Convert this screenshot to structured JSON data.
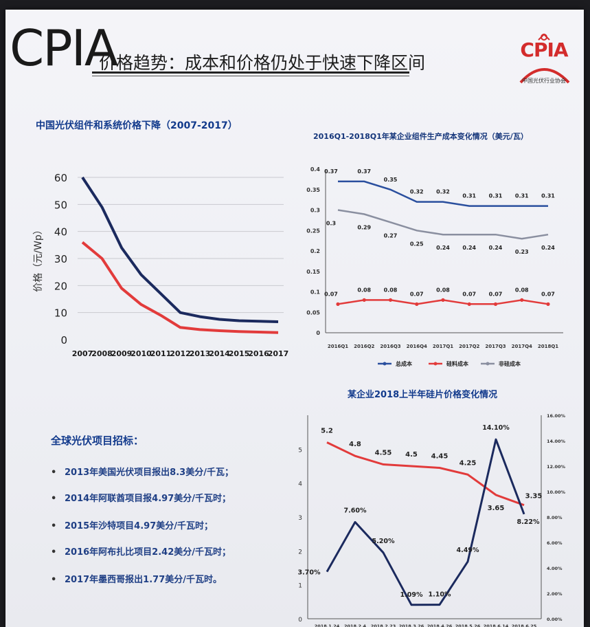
{
  "header": {
    "cpia_text": "CPIA",
    "title": "价格趋势：成本和价格仍处于快速下降区间",
    "logo_text": "CPIA",
    "logo_subtitle": "中国光伏行业协会"
  },
  "colors": {
    "navy": "#1b2a5e",
    "red": "#e23b3b",
    "blue": "#2a4f9e",
    "gray": "#8a8fa0",
    "title_blue": "#123a8c"
  },
  "chart_data": [
    {
      "id": "module-system-price",
      "type": "line",
      "title": "中国光伏组件和系统价格下降（2007-2017）",
      "ylabel": "价格（元/Wp）",
      "x": [
        "2007",
        "2008",
        "2009",
        "2010",
        "2011",
        "2012",
        "2013",
        "2014",
        "2015",
        "2016",
        "2017"
      ],
      "yticks": [
        0,
        10,
        20,
        30,
        40,
        50,
        60
      ],
      "ylim": [
        0,
        60
      ],
      "grid": true,
      "series": [
        {
          "color": "#1b2a5e",
          "values": [
            60,
            49,
            34,
            24,
            17,
            10,
            8.5,
            7.5,
            7,
            6.8,
            6.6
          ]
        },
        {
          "color": "#e23b3b",
          "values": [
            36,
            30,
            19,
            13,
            9,
            4.5,
            3.7,
            3.3,
            3.0,
            2.8,
            2.6
          ]
        }
      ]
    },
    {
      "id": "module-cost",
      "type": "line",
      "title": "2016Q1-2018Q1年某企业组件生产成本变化情况（美元/瓦）",
      "x": [
        "2016Q1",
        "2016Q2",
        "2016Q3",
        "2016Q4",
        "2017Q1",
        "2017Q2",
        "2017Q3",
        "2017Q4",
        "2018Q1"
      ],
      "yticks": [
        "0",
        "0.05",
        "0.1",
        "0.15",
        "0.2",
        "0.25",
        "0.3",
        "0.35",
        "0.4"
      ],
      "ylim": [
        0,
        0.4
      ],
      "legend_position": "bottom",
      "series": [
        {
          "name": "总成本",
          "color": "#2a4f9e",
          "values": [
            0.37,
            0.37,
            0.35,
            0.32,
            0.32,
            0.31,
            0.31,
            0.31,
            0.31
          ],
          "labels": [
            "0.37",
            "0.37",
            "0.35",
            "0.32",
            "0.32",
            "0.31",
            "0.31",
            "0.31",
            "0.31"
          ]
        },
        {
          "name": "非硅成本",
          "color": "#8a8fa0",
          "values": [
            0.3,
            0.29,
            0.27,
            0.25,
            0.24,
            0.24,
            0.24,
            0.23,
            0.24
          ],
          "labels": [
            "0.3",
            "0.29",
            "0.27",
            "0.25",
            "0.24",
            "0.24",
            "0.24",
            "0.23",
            "0.24"
          ]
        },
        {
          "name": "硅料成本",
          "color": "#e23b3b",
          "values": [
            0.07,
            0.08,
            0.08,
            0.07,
            0.08,
            0.07,
            0.07,
            0.08,
            0.07
          ],
          "labels": [
            "0.07",
            "0.08",
            "0.08",
            "0.07",
            "0.08",
            "0.07",
            "0.07",
            "0.08",
            "0.07"
          ]
        }
      ],
      "legend": [
        "总成本",
        "硅料成本",
        "非硅成本"
      ]
    },
    {
      "id": "wafer-price",
      "type": "line",
      "title": "某企业2018上半年硅片价格变化情况",
      "x": [
        "2018.1.24",
        "2018.2.4",
        "2018.2.23",
        "2018.3.26",
        "2018.4.26",
        "2018.5.26",
        "2018.6.14",
        "2018.6.25"
      ],
      "yticks_left": [
        "0",
        "1",
        "2",
        "3",
        "4",
        "5"
      ],
      "ylim_left": [
        0,
        6
      ],
      "yticks_right": [
        "0.00%",
        "2.00%",
        "4.00%",
        "6.00%",
        "8.00%",
        "10.00%",
        "12.00%",
        "14.00%",
        "16.00%"
      ],
      "ylim_right": [
        0,
        16
      ],
      "series": [
        {
          "color": "#e23b3b",
          "axis": "left",
          "values": [
            5.2,
            4.8,
            4.55,
            4.5,
            4.45,
            4.25,
            3.65,
            3.35
          ],
          "labels": [
            "5.2",
            "4.8",
            "4.55",
            "4.5",
            "4.45",
            "4.25",
            "3.65",
            "3.35"
          ]
        },
        {
          "color": "#1b2a5e",
          "axis": "right",
          "values": [
            3.7,
            7.6,
            5.2,
            1.09,
            1.1,
            4.49,
            14.1,
            8.22
          ],
          "labels": [
            "3.70%",
            "7.60%",
            "5.20%",
            "1.09%",
            "1.10%",
            "4.49%",
            "14.10%",
            "8.22%"
          ]
        }
      ]
    }
  ],
  "bidding": {
    "title": "全球光伏项目招标：",
    "bullet": "•",
    "items": [
      "2013年美国光伏项目报出8.3美分/千瓦；",
      "2014年阿联酋项目报4.97美分/千瓦时；",
      "2015年沙特项目4.97美分/千瓦时；",
      "2016年阿布扎比项目2.42美分/千瓦时；",
      "2017年墨西哥报出1.77美分/千瓦时。"
    ]
  }
}
